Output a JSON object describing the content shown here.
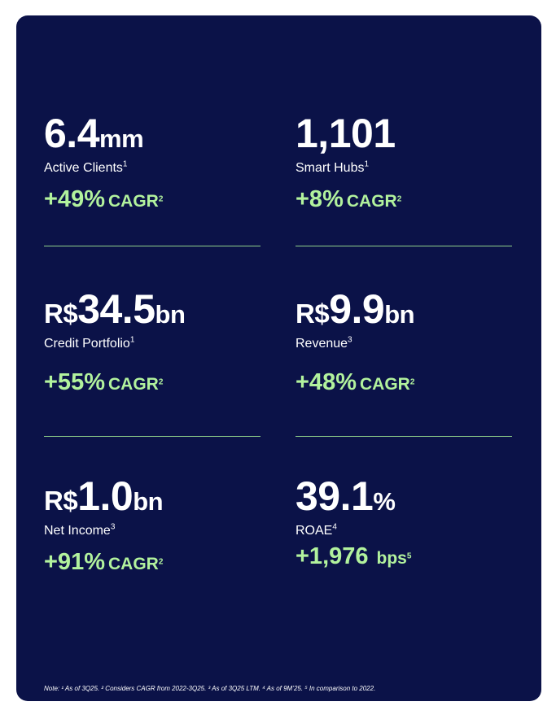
{
  "colors": {
    "card_bg": "#0b1248",
    "text": "#ffffff",
    "accent": "#b2f29d"
  },
  "metrics": [
    {
      "prefix": "",
      "value": "6.4",
      "suffix": "mm",
      "label": "Active Clients",
      "label_ref": "1",
      "growth_value": "+49%",
      "growth_unit": "CAGR",
      "growth_ref": "2"
    },
    {
      "prefix": "",
      "value": "1,101",
      "suffix": "",
      "label": "Smart Hubs",
      "label_ref": "1",
      "growth_value": "+8%",
      "growth_unit": "CAGR",
      "growth_ref": "2"
    },
    {
      "prefix": "R$",
      "value": "34.5",
      "suffix": "bn",
      "label": "Credit Portfolio",
      "label_ref": "1",
      "growth_value": "+55%",
      "growth_unit": "CAGR",
      "growth_ref": "2"
    },
    {
      "prefix": "R$",
      "value": "9.9",
      "suffix": "bn",
      "label": "Revenue",
      "label_ref": "3",
      "growth_value": "+48%",
      "growth_unit": "CAGR",
      "growth_ref": "2"
    },
    {
      "prefix": "R$",
      "value": "1.0",
      "suffix": "bn",
      "label": "Net Income",
      "label_ref": "3",
      "growth_value": "+91%",
      "growth_unit": "CAGR",
      "growth_ref": "2"
    },
    {
      "prefix": "",
      "value": "39.1",
      "suffix": "%",
      "label": "ROAE",
      "label_ref": "4",
      "growth_value": "+1,976",
      "growth_unit": "bps",
      "growth_ref": "5"
    }
  ],
  "note": "Note: ¹ As of 3Q25. ² Considers CAGR from 2022-3Q25. ³ As of 3Q25 LTM. ⁴ As of 9M’25. ⁵ In comparison to 2022."
}
